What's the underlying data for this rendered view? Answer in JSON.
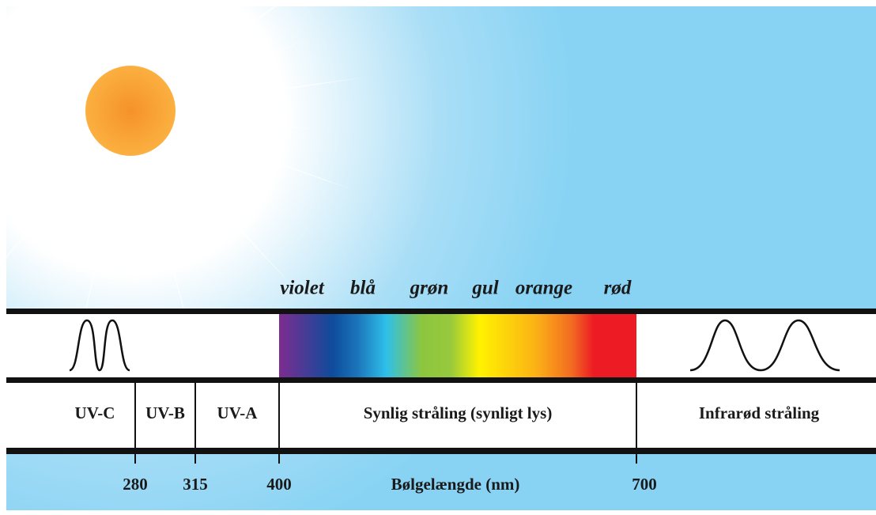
{
  "colors": [
    "violet",
    "blå",
    "grøn",
    "gul",
    "orange",
    "rød"
  ],
  "regions": [
    "UV-C",
    "UV-B",
    "UV-A",
    "Synlig stråling (synligt lys)",
    "Infrarød stråling"
  ],
  "ticks": [
    280,
    315,
    400,
    700
  ],
  "axis_label": "Bølgelængde (nm)"
}
